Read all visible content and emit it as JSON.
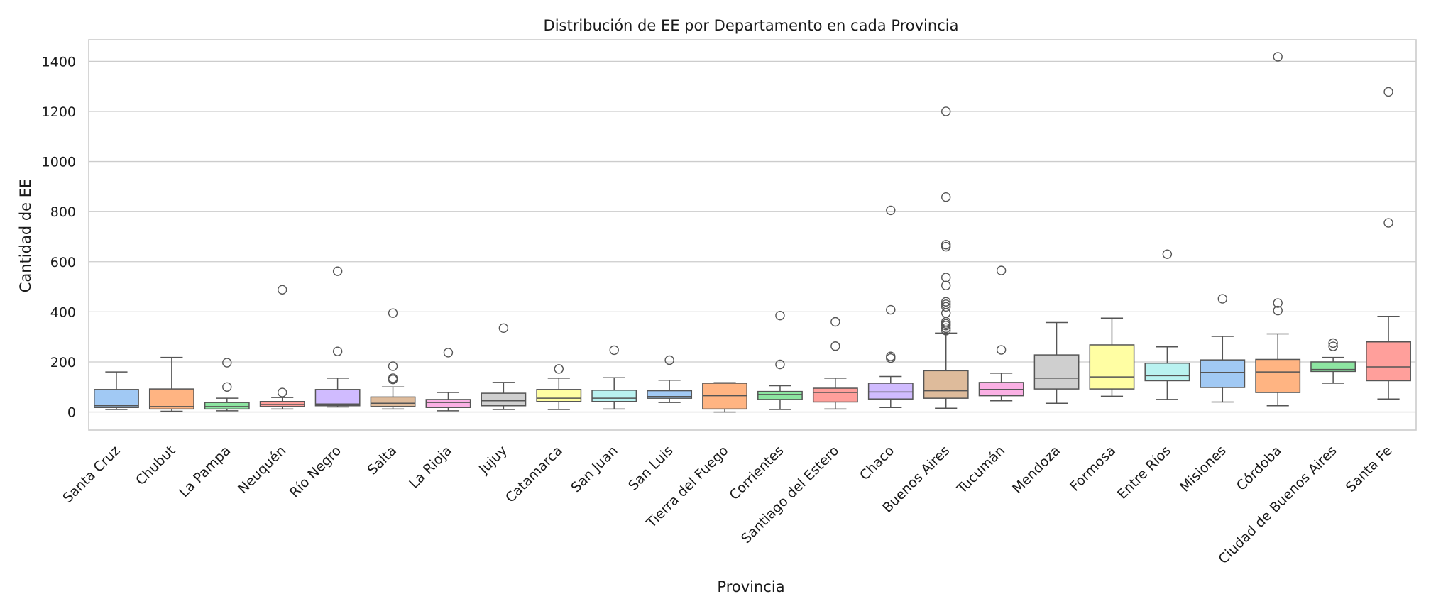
{
  "chart_data": {
    "type": "box",
    "title": "Distribución de EE por Departamento en cada Provincia",
    "xlabel": "Provincia",
    "ylabel": "Cantidad de EE",
    "ylim": [
      -72,
      1486
    ],
    "yticks": [
      0,
      200,
      400,
      600,
      800,
      1000,
      1200,
      1400
    ],
    "grid": "horizontal",
    "categories": [
      "Santa Cruz",
      "Chubut",
      "La Pampa",
      "Neuquén",
      "Río Negro",
      "Salta",
      "La Rioja",
      "Jujuy",
      "Catamarca",
      "San Juan",
      "San Luis",
      "Tierra del Fuego",
      "Corrientes",
      "Santiago del Estero",
      "Chaco",
      "Buenos Aires",
      "Tucumán",
      "Mendoza",
      "Formosa",
      "Entre Ríos",
      "Misiones",
      "Córdoba",
      "Ciudad de Buenos Aires",
      "Santa Fe"
    ],
    "colors": [
      "#a1c9f4",
      "#ffb482",
      "#8de5a1",
      "#ff9f9b",
      "#d0bbff",
      "#debb9b",
      "#fab0e4",
      "#cfcfcf",
      "#fffea3",
      "#b9f2f0",
      "#a1c9f4",
      "#ffb482",
      "#8de5a1",
      "#ff9f9b",
      "#d0bbff",
      "#debb9b",
      "#fab0e4",
      "#cfcfcf",
      "#fffea3",
      "#b9f2f0",
      "#a1c9f4",
      "#ffb482",
      "#8de5a1",
      "#ff9f9b"
    ],
    "boxes": [
      {
        "whislo": 10,
        "q1": 18,
        "med": 25,
        "q3": 90,
        "whishi": 160,
        "fliers": []
      },
      {
        "whislo": 3,
        "q1": 12,
        "med": 22,
        "q3": 92,
        "whishi": 218,
        "fliers": []
      },
      {
        "whislo": 5,
        "q1": 12,
        "med": 22,
        "q3": 38,
        "whishi": 55,
        "fliers": [
          100,
          197
        ]
      },
      {
        "whislo": 12,
        "q1": 22,
        "med": 30,
        "q3": 42,
        "whishi": 58,
        "fliers": [
          78,
          488
        ]
      },
      {
        "whislo": 20,
        "q1": 25,
        "med": 32,
        "q3": 90,
        "whishi": 135,
        "fliers": [
          242,
          562
        ]
      },
      {
        "whislo": 12,
        "q1": 22,
        "med": 35,
        "q3": 60,
        "whishi": 100,
        "fliers": [
          130,
          135,
          183,
          395
        ]
      },
      {
        "whislo": 5,
        "q1": 18,
        "med": 38,
        "q3": 50,
        "whishi": 78,
        "fliers": [
          237
        ]
      },
      {
        "whislo": 10,
        "q1": 25,
        "med": 45,
        "q3": 75,
        "whishi": 118,
        "fliers": [
          335
        ]
      },
      {
        "whislo": 10,
        "q1": 42,
        "med": 55,
        "q3": 90,
        "whishi": 135,
        "fliers": [
          172
        ]
      },
      {
        "whislo": 12,
        "q1": 42,
        "med": 55,
        "q3": 87,
        "whishi": 137,
        "fliers": [
          247
        ]
      },
      {
        "whislo": 38,
        "q1": 55,
        "med": 62,
        "q3": 85,
        "whishi": 127,
        "fliers": [
          207
        ]
      },
      {
        "whislo": 0,
        "q1": 12,
        "med": 65,
        "q3": 115,
        "whishi": 117,
        "fliers": []
      },
      {
        "whislo": 10,
        "q1": 50,
        "med": 70,
        "q3": 82,
        "whishi": 105,
        "fliers": [
          190,
          385
        ]
      },
      {
        "whislo": 12,
        "q1": 40,
        "med": 78,
        "q3": 95,
        "whishi": 135,
        "fliers": [
          263,
          360
        ]
      },
      {
        "whislo": 18,
        "q1": 52,
        "med": 80,
        "q3": 115,
        "whishi": 142,
        "fliers": [
          215,
          222,
          408,
          805
        ]
      },
      {
        "whislo": 15,
        "q1": 55,
        "med": 85,
        "q3": 165,
        "whishi": 315,
        "fliers": [
          325,
          335,
          345,
          352,
          360,
          395,
          420,
          430,
          440,
          505,
          537,
          660,
          668,
          858,
          1200
        ]
      },
      {
        "whislo": 45,
        "q1": 65,
        "med": 90,
        "q3": 118,
        "whishi": 155,
        "fliers": [
          248,
          565
        ]
      },
      {
        "whislo": 35,
        "q1": 92,
        "med": 135,
        "q3": 228,
        "whishi": 357,
        "fliers": []
      },
      {
        "whislo": 63,
        "q1": 92,
        "med": 140,
        "q3": 268,
        "whishi": 375,
        "fliers": []
      },
      {
        "whislo": 50,
        "q1": 125,
        "med": 145,
        "q3": 195,
        "whishi": 260,
        "fliers": [
          630
        ]
      },
      {
        "whislo": 40,
        "q1": 98,
        "med": 158,
        "q3": 208,
        "whishi": 302,
        "fliers": [
          452
        ]
      },
      {
        "whislo": 25,
        "q1": 78,
        "med": 160,
        "q3": 210,
        "whishi": 312,
        "fliers": [
          405,
          435,
          1418
        ]
      },
      {
        "whislo": 115,
        "q1": 162,
        "med": 170,
        "q3": 200,
        "whishi": 218,
        "fliers": [
          262,
          275
        ]
      },
      {
        "whislo": 52,
        "q1": 125,
        "med": 180,
        "q3": 280,
        "whishi": 382,
        "fliers": [
          755,
          1278
        ]
      }
    ]
  }
}
